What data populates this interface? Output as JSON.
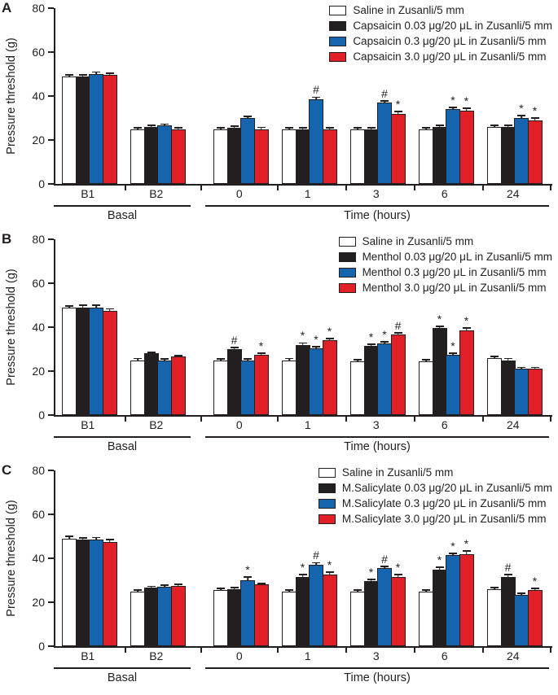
{
  "figure": {
    "ylabel": "Pressure threshold (g)",
    "y_ticks": [
      "0",
      "20",
      "40",
      "60",
      "80"
    ],
    "section_labels": {
      "basal": "Basal",
      "time": "Time (hours)"
    },
    "marker_glyphs": {
      "significant": "*",
      "highly_significant": "#"
    },
    "colors": {
      "saline": "#ffffff",
      "dose_low": "#231f20",
      "dose_mid": "#1465ad",
      "dose_high": "#e01f26",
      "axis": "#231f20"
    }
  },
  "chart_data": [
    {
      "type": "bar",
      "panel": "A",
      "ylabel": "Pressure threshold (g)",
      "ylim": [
        0,
        80
      ],
      "grid": false,
      "legend_position": "top-right",
      "categories": [
        "B1",
        "B2",
        "0",
        "1",
        "3",
        "6",
        "24"
      ],
      "category_sections": [
        {
          "label": "Basal",
          "span": [
            0,
            1
          ]
        },
        {
          "label": "Time (hours)",
          "span": [
            2,
            6
          ]
        }
      ],
      "series": [
        {
          "name": "Saline in Zusanli/5 mm",
          "color": "#ffffff",
          "values": [
            49,
            25,
            25,
            25,
            25,
            25,
            26
          ],
          "errors": [
            0.8,
            0.7,
            0.7,
            0.7,
            0.7,
            0.7,
            0.7
          ],
          "markers": [
            "",
            "",
            "",
            "",
            "",
            "",
            ""
          ]
        },
        {
          "name": "Capsaicin 0.03 μg/20 μL in Zusanli/5 mm",
          "color": "#231f20",
          "values": [
            49,
            26,
            25.5,
            25,
            25,
            26,
            26
          ],
          "errors": [
            0.8,
            0.7,
            0.8,
            0.7,
            0.7,
            0.8,
            0.7
          ],
          "markers": [
            "",
            "",
            "",
            "",
            "",
            "",
            ""
          ]
        },
        {
          "name": "Capsaicin 0.3 μg/20 μL in Zusanli/5 mm",
          "color": "#1465ad",
          "values": [
            50,
            26.5,
            30,
            38.5,
            37,
            34,
            30
          ],
          "errors": [
            1.0,
            0.8,
            0.8,
            1.0,
            0.9,
            1.0,
            1.2
          ],
          "markers": [
            "",
            "",
            "",
            "#",
            "#",
            "*",
            "*"
          ]
        },
        {
          "name": "Capsaicin 3.0 μg/20 μL in Zusanli/5 mm",
          "color": "#e01f26",
          "values": [
            49.5,
            25,
            25,
            25,
            32,
            33.5,
            29
          ],
          "errors": [
            0.8,
            0.7,
            0.8,
            0.7,
            0.9,
            0.9,
            1.0
          ],
          "markers": [
            "",
            "",
            "",
            "",
            "*",
            "*",
            "*"
          ]
        }
      ]
    },
    {
      "type": "bar",
      "panel": "B",
      "ylabel": "Pressure threshold (g)",
      "ylim": [
        0,
        80
      ],
      "grid": false,
      "legend_position": "top-right",
      "categories": [
        "B1",
        "B2",
        "0",
        "1",
        "3",
        "6",
        "24"
      ],
      "category_sections": [
        {
          "label": "Basal",
          "span": [
            0,
            1
          ]
        },
        {
          "label": "Time (hours)",
          "span": [
            2,
            6
          ]
        }
      ],
      "series": [
        {
          "name": "Saline in Zusanli/5 mm",
          "color": "#ffffff",
          "values": [
            49,
            25,
            25,
            25,
            24.5,
            24.5,
            26
          ],
          "errors": [
            0.8,
            0.8,
            0.7,
            0.8,
            0.7,
            0.7,
            0.7
          ],
          "markers": [
            "",
            "",
            "",
            "",
            "",
            "",
            ""
          ]
        },
        {
          "name": "Menthol 0.03 μg/20 μL in Zusanli/5 mm",
          "color": "#231f20",
          "values": [
            49,
            28,
            30,
            32,
            31.5,
            39.5,
            25
          ],
          "errors": [
            0.9,
            0.7,
            0.9,
            0.8,
            0.8,
            1.0,
            0.8
          ],
          "markers": [
            "",
            "",
            "#",
            "*",
            "*",
            "*",
            ""
          ]
        },
        {
          "name": "Menthol 0.3 μg/20 μL in Zusanli/5 mm",
          "color": "#1465ad",
          "values": [
            49,
            25,
            25,
            30.5,
            32.5,
            27.5,
            21
          ],
          "errors": [
            0.9,
            0.7,
            0.7,
            0.8,
            0.8,
            0.8,
            0.7
          ],
          "markers": [
            "",
            "",
            "",
            "*",
            "*",
            "*",
            ""
          ]
        },
        {
          "name": "Menthol 3.0 μg/20 μL in Zusanli/5 mm",
          "color": "#e01f26",
          "values": [
            47.5,
            26.5,
            27.5,
            34,
            36.5,
            38.5,
            21
          ],
          "errors": [
            0.9,
            0.7,
            0.6,
            0.9,
            1.0,
            1.2,
            0.7
          ],
          "markers": [
            "",
            "",
            "*",
            "*",
            "#",
            "*",
            ""
          ]
        }
      ]
    },
    {
      "type": "bar",
      "panel": "C",
      "ylabel": "Pressure threshold (g)",
      "ylim": [
        0,
        80
      ],
      "grid": false,
      "legend_position": "top-right",
      "categories": [
        "B1",
        "B2",
        "0",
        "1",
        "3",
        "6",
        "24"
      ],
      "category_sections": [
        {
          "label": "Basal",
          "span": [
            0,
            1
          ]
        },
        {
          "label": "Time (hours)",
          "span": [
            2,
            6
          ]
        }
      ],
      "series": [
        {
          "name": "Saline in Zusanli/5 mm",
          "color": "#ffffff",
          "values": [
            49,
            25,
            25.5,
            25,
            25,
            25,
            26
          ],
          "errors": [
            0.9,
            0.7,
            0.7,
            0.7,
            0.7,
            0.7,
            0.7
          ],
          "markers": [
            "",
            "",
            "",
            "",
            "",
            "",
            ""
          ]
        },
        {
          "name": "M.Salicylate 0.03 μg/20 μL in Zusanli/5 mm",
          "color": "#231f20",
          "values": [
            48.5,
            26.5,
            26,
            31.5,
            29.5,
            35,
            31.5
          ],
          "errors": [
            0.8,
            0.8,
            0.8,
            1.0,
            0.8,
            0.9,
            1.0
          ],
          "markers": [
            "",
            "",
            "",
            "*",
            "*",
            "*",
            "#"
          ]
        },
        {
          "name": "M.Salicylate 0.3 μg/20 μL in Zusanli/5 mm",
          "color": "#1465ad",
          "values": [
            48.5,
            27,
            30,
            37,
            35.5,
            41.5,
            23.5
          ],
          "errors": [
            1.0,
            0.8,
            1.5,
            1.0,
            0.9,
            0.8,
            0.6
          ],
          "markers": [
            "",
            "",
            "*",
            "#",
            "#",
            "*",
            ""
          ]
        },
        {
          "name": "M.Salicylate 3.0 μg/20 μL in Zusanli/5 mm",
          "color": "#e01f26",
          "values": [
            47.5,
            27.5,
            28,
            32.5,
            31.5,
            42,
            25.5
          ],
          "errors": [
            1.0,
            0.8,
            0.7,
            1.2,
            1.2,
            1.3,
            0.8
          ],
          "markers": [
            "",
            "",
            "",
            "*",
            "*",
            "*",
            "*"
          ]
        }
      ]
    }
  ]
}
